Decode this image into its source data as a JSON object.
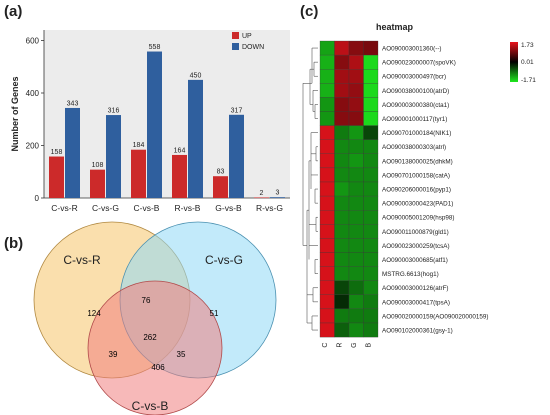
{
  "panel_labels": {
    "a": "(a)",
    "b": "(b)",
    "c": "(c)"
  },
  "chart_data": [
    {
      "type": "bar",
      "panel": "a",
      "title": "",
      "xlabel": "",
      "ylabel": "Number of Genes",
      "ylim": [
        0,
        640
      ],
      "yticks": [
        0,
        200,
        400,
        600
      ],
      "categories": [
        "C-vs-R",
        "C-vs-G",
        "C-vs-B",
        "R-vs-B",
        "G-vs-B",
        "R-vs-G"
      ],
      "series": [
        {
          "name": "UP",
          "color": "#cc2a2a",
          "values": [
            158,
            108,
            184,
            164,
            83,
            2
          ]
        },
        {
          "name": "DOWN",
          "color": "#2f5f9e",
          "values": [
            343,
            316,
            558,
            450,
            317,
            3
          ]
        }
      ],
      "legend_position": "top-right",
      "grid": false
    },
    {
      "type": "heatmap",
      "panel": "c",
      "title": "heatmap",
      "columns": [
        "C",
        "R",
        "G",
        "B"
      ],
      "color_scale": {
        "max": 1.73,
        "mid": 0.01,
        "min": -1.71,
        "max_label": "1.73",
        "mid_label": "0.01",
        "min_label": "-1.71",
        "high_color": "#e8141c",
        "mid_color": "#000000",
        "low_color": "#1ee81e"
      },
      "rows": [
        {
          "label": "AO090003001360(--)",
          "values": [
            -1.2,
            1.4,
            1.0,
            0.9
          ]
        },
        {
          "label": "AO090023000007(spoVK)",
          "values": [
            -1.3,
            1.0,
            1.3,
            -1.6
          ]
        },
        {
          "label": "AO090003000497(bcr)",
          "values": [
            -1.3,
            1.2,
            1.2,
            -1.6
          ]
        },
        {
          "label": "AO090038000100(atrD)",
          "values": [
            -1.3,
            1.2,
            1.1,
            -1.6
          ]
        },
        {
          "label": "AO090003000380(cta1)",
          "values": [
            -1.1,
            1.0,
            1.1,
            -1.6
          ]
        },
        {
          "label": "AO090001000117(tyr1)",
          "values": [
            -1.1,
            1.0,
            1.0,
            -1.6
          ]
        },
        {
          "label": "AO090701000184(NIK1)",
          "values": [
            1.6,
            -0.9,
            -1.1,
            -0.5
          ]
        },
        {
          "label": "AO090038000303(atrl)",
          "values": [
            1.6,
            -1.0,
            -1.0,
            -1.0
          ]
        },
        {
          "label": "AO090138000025(dhkM)",
          "values": [
            1.6,
            -1.0,
            -1.1,
            -1.0
          ]
        },
        {
          "label": "AO090701000158(catA)",
          "values": [
            1.6,
            -1.0,
            -1.0,
            -1.0
          ]
        },
        {
          "label": "AO090206000016(pyp1)",
          "values": [
            1.6,
            -1.1,
            -1.0,
            -1.0
          ]
        },
        {
          "label": "AO090003000423(PAD1)",
          "values": [
            1.6,
            -1.0,
            -1.0,
            -1.0
          ]
        },
        {
          "label": "AO090005001209(hsp98)",
          "values": [
            1.6,
            -1.0,
            -1.0,
            -1.0
          ]
        },
        {
          "label": "AO090011000879(gld1)",
          "values": [
            1.6,
            -1.0,
            -1.0,
            -1.0
          ]
        },
        {
          "label": "AO090023000259(tcsA)",
          "values": [
            1.6,
            -1.0,
            -1.0,
            -1.0
          ]
        },
        {
          "label": "AO090003000685(atf1)",
          "values": [
            1.6,
            -1.0,
            -1.0,
            -1.0
          ]
        },
        {
          "label": "MSTRG.6613(hog1)",
          "values": [
            1.6,
            -1.0,
            -1.0,
            -1.0
          ]
        },
        {
          "label": "AO090003000126(atrF)",
          "values": [
            1.6,
            -0.5,
            -0.8,
            -1.0
          ]
        },
        {
          "label": "AO090003000417(tpsA)",
          "values": [
            1.6,
            -0.3,
            -1.0,
            -0.9
          ]
        },
        {
          "label": "AO090020000159(AO090020000159)",
          "values": [
            1.6,
            -0.9,
            -0.9,
            -0.9
          ]
        },
        {
          "label": "AO090102000361(gsy-1)",
          "values": [
            1.6,
            -0.7,
            -1.0,
            -0.9
          ]
        }
      ]
    }
  ],
  "venn": {
    "sets": [
      {
        "name": "C-vs-R",
        "color": "#f5c56a"
      },
      {
        "name": "C-vs-G",
        "color": "#8fd8f5"
      },
      {
        "name": "C-vs-B",
        "color": "#f08080"
      }
    ],
    "regions": {
      "only_R": "124",
      "only_G": "51",
      "only_B": "406",
      "R_G": "76",
      "R_B": "39",
      "G_B": "35",
      "all": "262"
    }
  }
}
